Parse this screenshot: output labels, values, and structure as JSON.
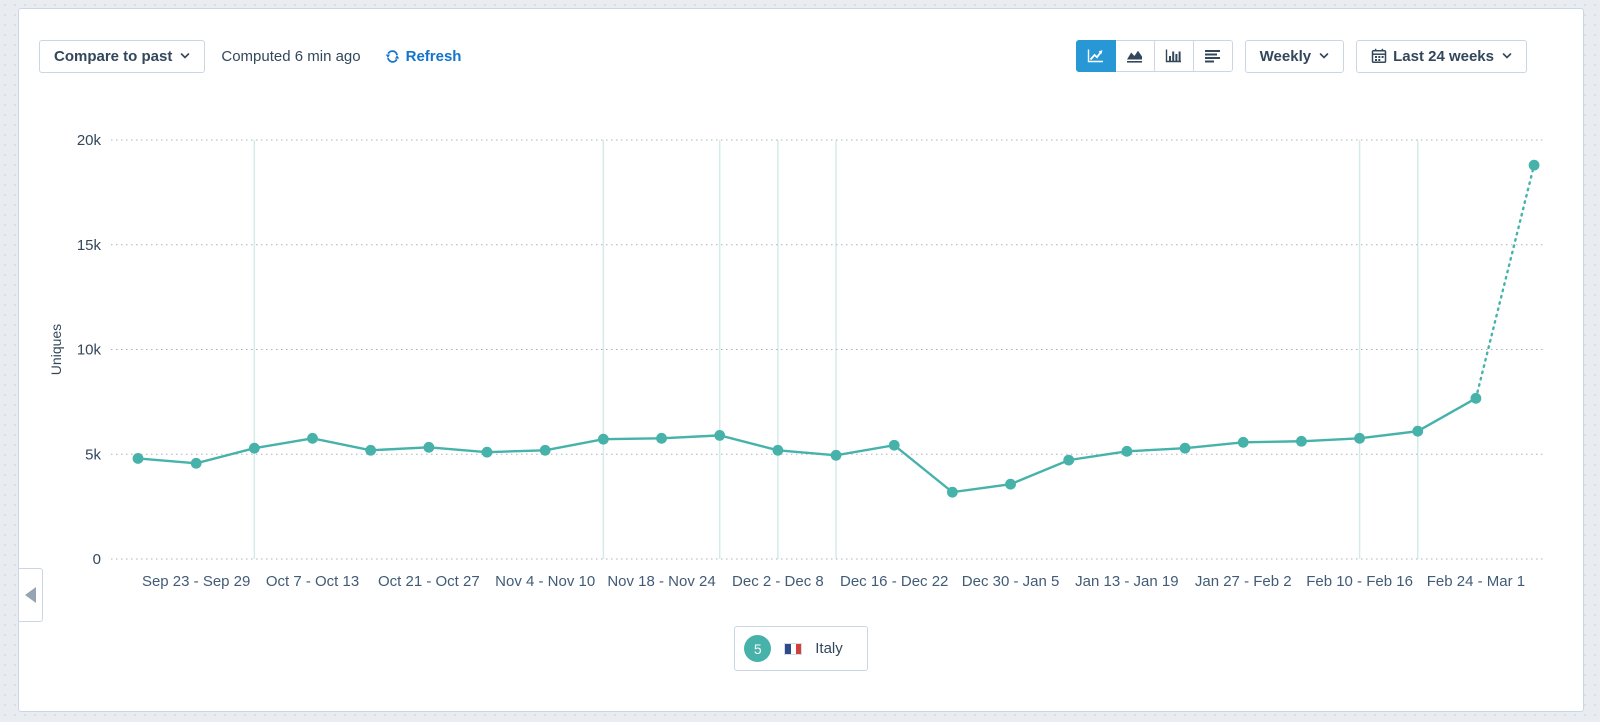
{
  "colors": {
    "accent_blue": "#2798d5",
    "link_blue": "#1274cc",
    "navy_text": "#33475b",
    "slate_text": "#425b76",
    "border": "#cbd6e2",
    "series_teal": "#46b2aa",
    "gridline": "#a9b3bb",
    "vertical_gridline": "#d5ebe9",
    "page_bg": "#e9edf1",
    "card_bg": "#ffffff"
  },
  "toolbar": {
    "compare_button": "Compare to past",
    "computed_text": "Computed 6 min ago",
    "refresh_label": "Refresh",
    "chart_type_buttons": [
      {
        "name": "line-chart",
        "active": true
      },
      {
        "name": "area-chart",
        "active": false
      },
      {
        "name": "column-chart",
        "active": false
      },
      {
        "name": "summary-table",
        "active": false
      }
    ],
    "frequency_dropdown": "Weekly",
    "date_range_dropdown": "Last 24 weeks"
  },
  "legend": {
    "badge_count": "5",
    "label": "Italy",
    "flag_colors": [
      "#2d4a8a",
      "#ffffff",
      "#d0413b"
    ]
  },
  "chart_data": {
    "type": "line",
    "title": "",
    "ylabel": "Uniques",
    "xlabel": "",
    "ylim": [
      0,
      20000
    ],
    "y_ticks": [
      "0",
      "5k",
      "10k",
      "15k",
      "20k"
    ],
    "x_tick_labels": [
      "Sep 23 - Sep 29",
      "Oct 7 - Oct 13",
      "Oct 21 - Oct 27",
      "Nov 4 - Nov 10",
      "Nov 18 - Nov 24",
      "Dec 2 - Dec 8",
      "Dec 16 - Dec 22",
      "Dec 30 - Jan 5",
      "Jan 13 - Jan 19",
      "Jan 27 - Feb 2",
      "Feb 10 - Feb 16",
      "Feb 24 - Mar 1"
    ],
    "x_labels_every_other_week": true,
    "grid": "horizontal-dotted",
    "legend_position": "bottom-center",
    "series": [
      {
        "name": "Italy",
        "color": "#46b2aa",
        "values": [
          4800,
          4570,
          5290,
          5760,
          5190,
          5330,
          5100,
          5190,
          5720,
          5760,
          5900,
          5190,
          4950,
          5430,
          3190,
          3570,
          4720,
          5140,
          5290,
          5570,
          5620,
          5760,
          6100,
          7670,
          18800
        ],
        "last_segment_dashed": true
      }
    ],
    "vertical_gridline_week_indices": [
      2,
      8,
      10,
      11,
      12,
      21,
      22
    ]
  }
}
